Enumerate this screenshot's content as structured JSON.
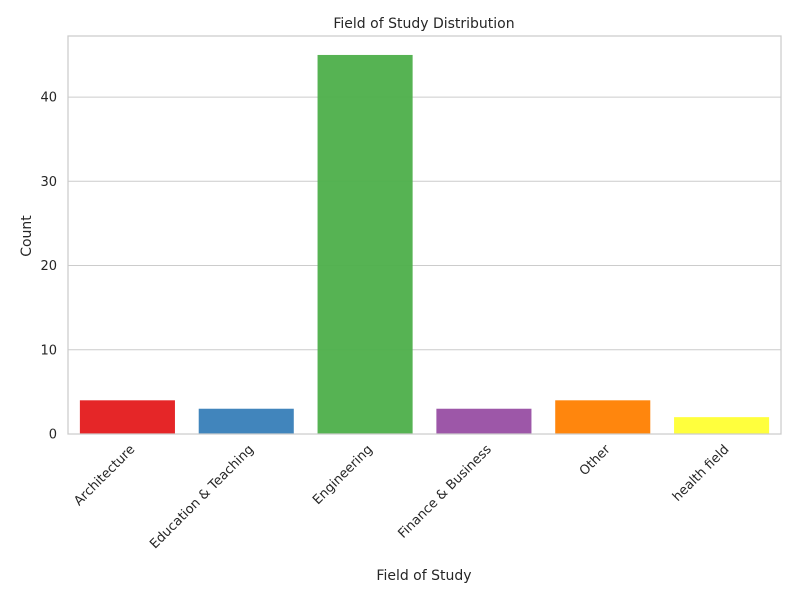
{
  "chart_data": {
    "type": "bar",
    "title": "Field of Study Distribution",
    "xlabel": "Field of Study",
    "ylabel": "Count",
    "categories": [
      "Architecture",
      "Education & Teaching",
      "Engineering",
      "Finance & Business",
      "Other",
      "health field"
    ],
    "values": [
      4,
      3,
      45,
      3,
      4,
      2
    ],
    "colors": [
      "#e41a1c",
      "#377eb8",
      "#4daf4a",
      "#984ea3",
      "#ff7f00",
      "#ffff33"
    ],
    "ylim": [
      0,
      47.25
    ],
    "yticks": [
      0,
      10,
      20,
      30,
      40
    ],
    "grid": true,
    "legend": "none"
  }
}
